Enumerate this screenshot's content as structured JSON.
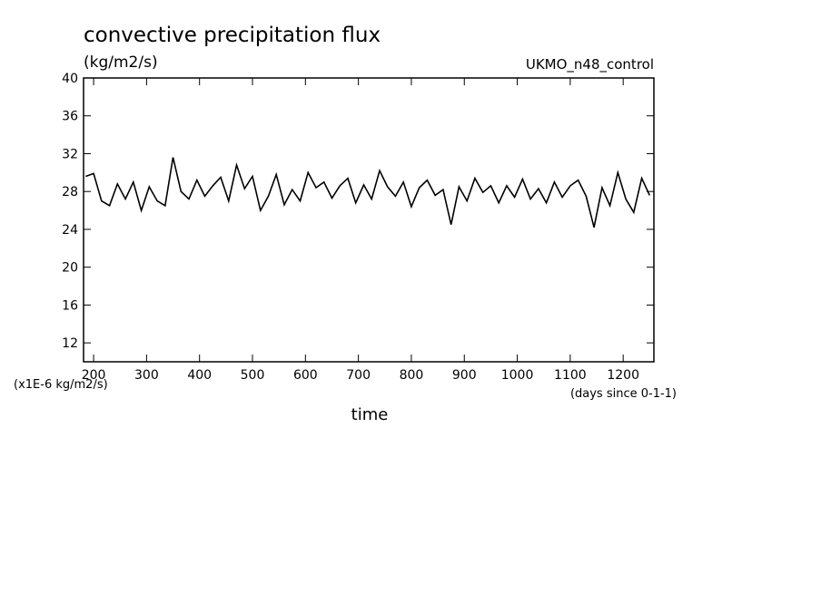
{
  "chart_data": {
    "type": "line",
    "title": "convective precipitation flux",
    "subtitle": "(kg/m2/s)",
    "annotation": "UKMO_n48_control",
    "ylabel": "(x1E-6 kg/m2/s)",
    "xunits": "(days since 0-1-1)",
    "xlabel": "time",
    "x": [
      185,
      200,
      215,
      230,
      245,
      260,
      275,
      290,
      305,
      320,
      335,
      350,
      365,
      380,
      395,
      410,
      425,
      440,
      455,
      470,
      485,
      500,
      515,
      530,
      545,
      560,
      575,
      590,
      605,
      620,
      635,
      650,
      665,
      680,
      695,
      710,
      725,
      740,
      755,
      770,
      785,
      800,
      815,
      830,
      845,
      860,
      875,
      890,
      905,
      920,
      935,
      950,
      965,
      980,
      995,
      1010,
      1025,
      1040,
      1055,
      1070,
      1085,
      1100,
      1115,
      1130,
      1145,
      1160,
      1175,
      1190,
      1205,
      1220,
      1235,
      1250
    ],
    "series": [
      {
        "name": "UKMO_n48_control",
        "color": "#000000",
        "values": [
          29.6,
          29.9,
          27.0,
          26.5,
          28.8,
          27.2,
          29.0,
          26.0,
          28.5,
          27.0,
          26.5,
          31.6,
          28.0,
          27.2,
          29.2,
          27.5,
          28.6,
          29.5,
          27.0,
          30.8,
          28.3,
          29.6,
          26.0,
          27.5,
          29.8,
          26.6,
          28.2,
          27.0,
          30.0,
          28.4,
          29.0,
          27.3,
          28.6,
          29.4,
          26.8,
          28.7,
          27.2,
          30.2,
          28.5,
          27.5,
          29.0,
          26.4,
          28.4,
          29.2,
          27.6,
          28.2,
          24.5,
          28.5,
          27.0,
          29.4,
          27.9,
          28.6,
          26.8,
          28.6,
          27.4,
          29.3,
          27.2,
          28.3,
          26.8,
          29.0,
          27.4,
          28.6,
          29.2,
          27.5,
          24.2,
          28.4,
          26.5,
          30.0,
          27.2,
          25.8,
          29.4,
          27.6
        ]
      }
    ],
    "xlim": [
      181,
      1258
    ],
    "ylim": [
      10,
      40
    ],
    "xticks": [
      200,
      300,
      400,
      500,
      600,
      700,
      800,
      900,
      1000,
      1100,
      1200
    ],
    "yticks": [
      12,
      16,
      20,
      24,
      28,
      32,
      36,
      40
    ]
  }
}
